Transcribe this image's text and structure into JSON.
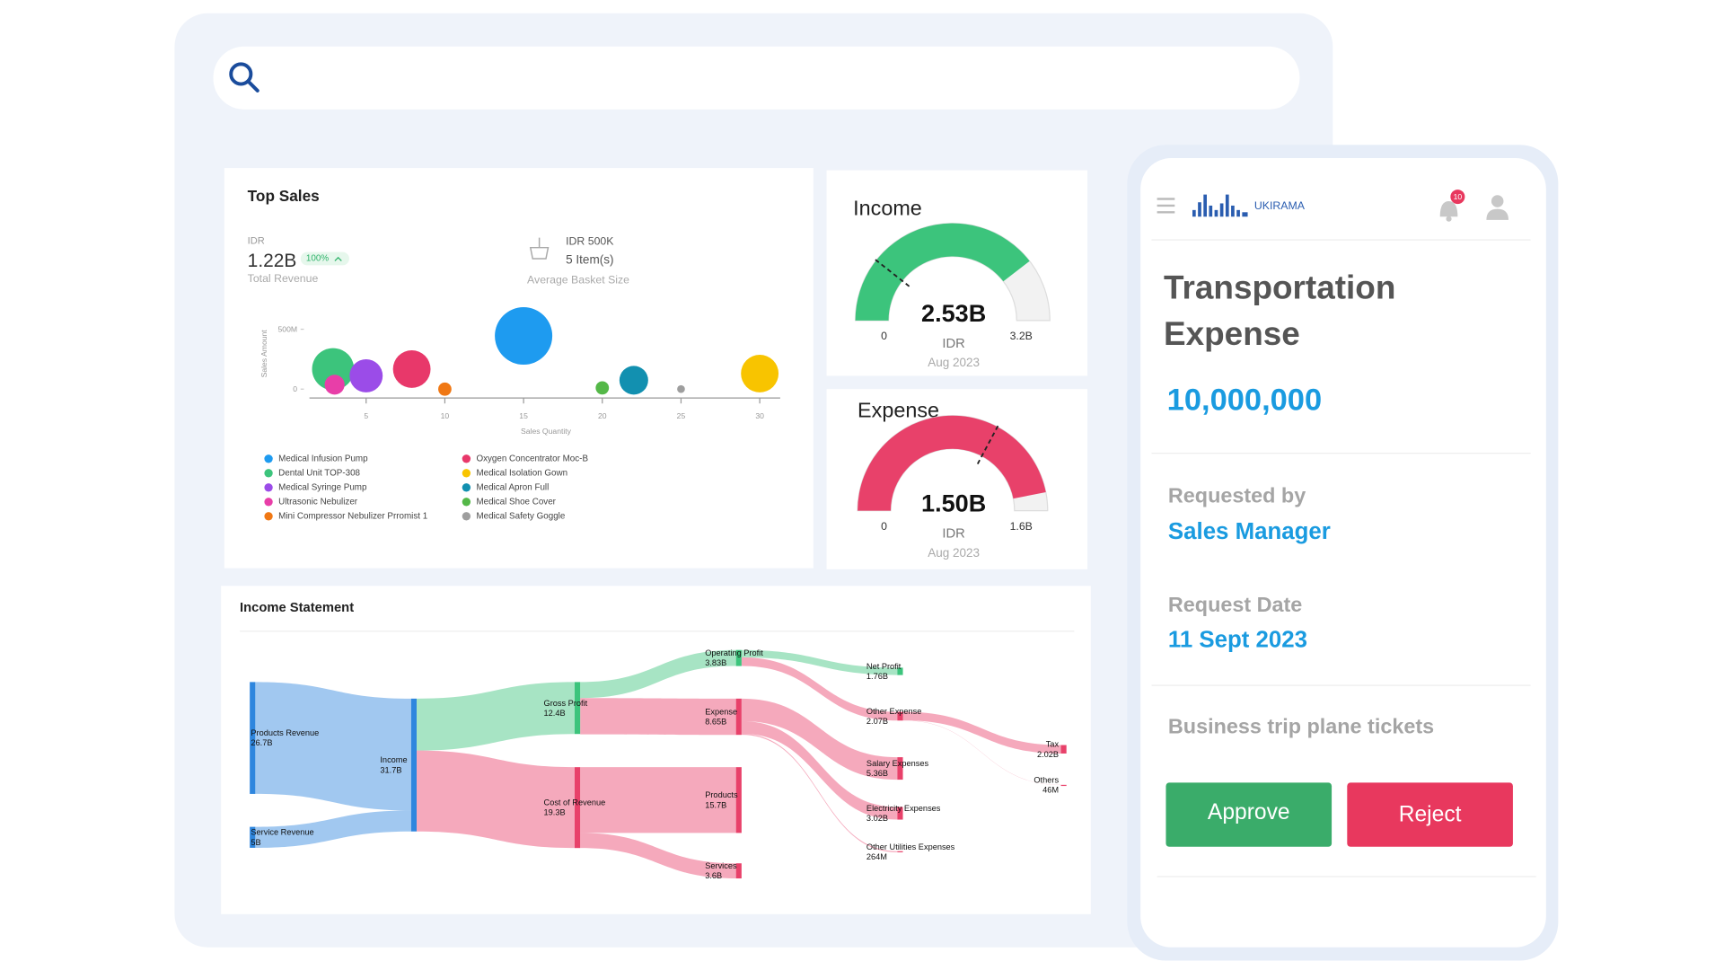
{
  "chart_data": [
    {
      "type": "bubble",
      "title": "Top Sales",
      "kpis": {
        "revenue_unit": "IDR",
        "revenue": "1.22B",
        "growth": "100%",
        "revenue_label": "Total Revenue",
        "basket_value": "IDR 500K",
        "basket_items": "5 Item(s)",
        "basket_label": "Average Basket Size"
      },
      "xlabel": "Sales Quantity",
      "ylabel": "Sales Amount",
      "xlim": [
        1.4,
        31.3
      ],
      "ylim": [
        0,
        600000000
      ],
      "xticks": [
        5,
        10,
        15,
        20,
        25,
        30
      ],
      "yticks": [
        0,
        {
          "value": 500000000,
          "label": "500M"
        }
      ],
      "series": [
        {
          "name": "Medical Infusion Pump",
          "color": "#1e9bf0",
          "x": [
            15
          ],
          "values": [
            444000000
          ],
          "size": [
            26
          ]
        },
        {
          "name": "Dental Unit TOP-308",
          "color": "#3cc47c",
          "x": [
            2.9
          ],
          "values": [
            167000000
          ],
          "size": [
            19
          ]
        },
        {
          "name": "Medical Syringe Pump",
          "color": "#9b4ce8",
          "x": [
            5
          ],
          "values": [
            111000000
          ],
          "size": [
            15
          ]
        },
        {
          "name": "Ultrasonic Nebulizer",
          "color": "#e83ea8",
          "x": [
            3
          ],
          "values": [
            37000000
          ],
          "size": [
            9
          ]
        },
        {
          "name": "Mini Compressor Nebulizer Prromist 1",
          "color": "#f07814",
          "x": [
            10
          ],
          "values": [
            0
          ],
          "size": [
            6
          ]
        },
        {
          "name": "Oxygen Concentrator Moc-B",
          "color": "#e8386a",
          "x": [
            7.9
          ],
          "values": [
            167000000
          ],
          "size": [
            17
          ]
        },
        {
          "name": "Medical Isolation Gown",
          "color": "#f8c400",
          "x": [
            30
          ],
          "values": [
            130000000
          ],
          "size": [
            17
          ]
        },
        {
          "name": "Medical Apron Full",
          "color": "#1290b0",
          "x": [
            22
          ],
          "values": [
            74000000
          ],
          "size": [
            13
          ]
        },
        {
          "name": "Medical Shoe Cover",
          "color": "#54b848",
          "x": [
            20
          ],
          "values": [
            10000000
          ],
          "size": [
            6
          ]
        },
        {
          "name": "Medical Safety Goggle",
          "color": "#9e9e9e",
          "x": [
            25
          ],
          "values": [
            0
          ],
          "size": [
            3.5
          ]
        }
      ]
    },
    {
      "type": "gauge",
      "title": "Income",
      "value": 2.53,
      "value_label": "2.53B",
      "min": 0,
      "max": {
        "value": 3.2,
        "label": "3.2B"
      },
      "target": 0.68,
      "unit": "IDR",
      "period": "Aug 2023",
      "color": "#3cc47c"
    },
    {
      "type": "gauge",
      "title": "Expense",
      "value": 1.5,
      "value_label": "1.50B",
      "min": 0,
      "max": {
        "value": 1.6,
        "label": "1.6B"
      },
      "target": 1.05,
      "unit": "IDR",
      "period": "Aug 2023",
      "color": "#e8416a"
    },
    {
      "type": "sankey",
      "title": "Income Statement",
      "sources": [
        {
          "label": "Products Revenue",
          "value": 26.7,
          "value_label": "26.7B",
          "color": "#2e86de"
        },
        {
          "label": "Service Revenue",
          "value": 5,
          "value_label": "5B",
          "color": "#2e86de"
        }
      ],
      "root": {
        "label": "Income",
        "value": 31.7,
        "value_label": "31.7B",
        "color": "#2e86de",
        "children": [
          {
            "label": "Gross Profit",
            "value": 12.4,
            "value_label": "12.4B",
            "color": "#3cc47c",
            "children": [
              {
                "label": "Operating Profit",
                "value": 3.83,
                "value_label": "3.83B",
                "color": "#3cc47c",
                "children": [
                  {
                    "label": "Net Profit",
                    "value": 1.76,
                    "value_label": "1.76B",
                    "color": "#3cc47c"
                  },
                  {
                    "label": "Other Expense",
                    "value": 2.07,
                    "value_label": "2.07B",
                    "color": "#e8416a",
                    "children": [
                      {
                        "label": "Tax",
                        "value": 2.02,
                        "value_label": "2.02B",
                        "color": "#e8416a"
                      },
                      {
                        "label": "Others",
                        "value": 0.046,
                        "value_label": "46M",
                        "color": "#e8416a"
                      }
                    ]
                  }
                ]
              },
              {
                "label": "Expense",
                "value": 8.65,
                "value_label": "8.65B",
                "color": "#e8416a",
                "children": [
                  {
                    "label": "Salary Expenses",
                    "value": 5.36,
                    "value_label": "5.36B",
                    "color": "#e8416a"
                  },
                  {
                    "label": "Electricity Expenses",
                    "value": 3.02,
                    "value_label": "3.02B",
                    "color": "#e8416a"
                  },
                  {
                    "label": "Other Utilities Expenses",
                    "value": 0.264,
                    "value_label": "264M",
                    "color": "#e8416a"
                  }
                ]
              }
            ]
          },
          {
            "label": "Cost of Revenue",
            "value": 19.3,
            "value_label": "19.3B",
            "color": "#e8416a",
            "children": [
              {
                "label": "Products",
                "value": 15.7,
                "value_label": "15.7B",
                "color": "#e8416a"
              },
              {
                "label": "Services",
                "value": 3.6,
                "value_label": "3.6B",
                "color": "#e8416a"
              }
            ]
          }
        ]
      }
    }
  ],
  "app": {
    "brand": "UKIRAMA",
    "notifications": 10,
    "title_lines": [
      "Transportation",
      "Expense"
    ],
    "amount": "10,000,000",
    "requested_by_label": "Requested by",
    "requested_by": "Sales Manager",
    "date_label": "Request Date",
    "date": "11 Sept 2023",
    "description": "Business trip plane tickets",
    "approve": "Approve",
    "reject": "Reject"
  }
}
